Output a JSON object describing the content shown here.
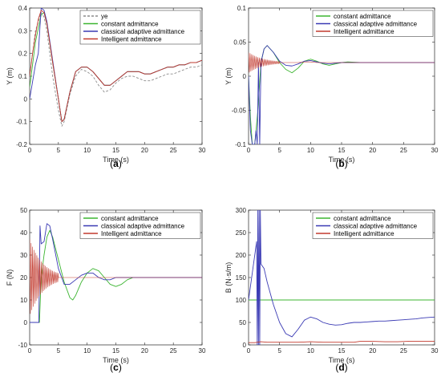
{
  "chart_data": [
    {
      "id": "a",
      "type": "line",
      "panel_label": "(a)",
      "panel_letter": "a",
      "xlabel": "Time (s)",
      "ylabel": "Y (m)",
      "xlim": [
        0,
        30
      ],
      "ylim": [
        -0.2,
        0.4
      ],
      "xticks": [
        0,
        5,
        10,
        15,
        20,
        25,
        30
      ],
      "yticks": [
        -0.2,
        -0.1,
        0,
        0.1,
        0.2,
        0.3,
        0.4
      ],
      "legend_position": "top-right",
      "series": [
        {
          "name": "ye",
          "color": "#8c8c8c",
          "dash": "3,2",
          "x": [
            0,
            1,
            2,
            2.5,
            3,
            4,
            5,
            5.6,
            6,
            7,
            8,
            9,
            10,
            11,
            12,
            13,
            14,
            15,
            16,
            17,
            18,
            19,
            20,
            21,
            22,
            23,
            24,
            25,
            26,
            27,
            28,
            29,
            30
          ],
          "y": [
            0.1,
            0.3,
            0.38,
            0.36,
            0.3,
            0.1,
            -0.05,
            -0.12,
            -0.1,
            0.02,
            0.1,
            0.13,
            0.12,
            0.1,
            0.06,
            0.03,
            0.04,
            0.07,
            0.09,
            0.1,
            0.1,
            0.09,
            0.08,
            0.08,
            0.09,
            0.1,
            0.11,
            0.11,
            0.12,
            0.13,
            0.14,
            0.14,
            0.15
          ]
        },
        {
          "name": "constant admittance",
          "color": "#3cb531",
          "dash": "",
          "x": [
            0,
            1,
            2,
            2.5,
            3,
            4,
            5,
            5.6,
            6,
            7,
            8,
            9,
            10,
            11,
            12,
            13,
            14,
            15,
            16,
            17,
            18,
            19,
            20,
            21,
            22,
            23,
            24,
            25,
            26,
            27,
            28,
            29,
            30
          ],
          "y": [
            0.05,
            0.25,
            0.37,
            0.38,
            0.33,
            0.16,
            0.0,
            -0.1,
            -0.09,
            0.03,
            0.12,
            0.14,
            0.14,
            0.12,
            0.09,
            0.06,
            0.06,
            0.08,
            0.1,
            0.12,
            0.12,
            0.12,
            0.11,
            0.11,
            0.12,
            0.13,
            0.14,
            0.14,
            0.15,
            0.15,
            0.16,
            0.16,
            0.17
          ]
        },
        {
          "name": "classical adaptive admittance",
          "color": "#3a3ab4",
          "dash": "",
          "x": [
            0,
            1,
            1.5,
            2,
            2.5,
            3,
            4,
            5,
            5.6,
            6,
            7,
            8,
            9,
            10,
            11,
            12,
            13,
            14,
            15,
            16,
            17,
            18,
            19,
            20,
            21,
            22,
            23,
            24,
            25,
            26,
            27,
            28,
            29,
            30
          ],
          "y": [
            0.0,
            0.15,
            0.2,
            0.4,
            0.39,
            0.34,
            0.17,
            0.0,
            -0.1,
            -0.09,
            0.03,
            0.12,
            0.14,
            0.14,
            0.12,
            0.09,
            0.06,
            0.06,
            0.08,
            0.1,
            0.12,
            0.12,
            0.12,
            0.11,
            0.11,
            0.12,
            0.13,
            0.14,
            0.14,
            0.15,
            0.15,
            0.16,
            0.16,
            0.17
          ]
        },
        {
          "name": "Intelligent admittance",
          "color": "#c23a2e",
          "dash": "",
          "x": [
            0,
            0.5,
            1,
            1.5,
            2,
            2.5,
            3,
            4,
            5,
            5.6,
            6,
            7,
            8,
            9,
            10,
            11,
            12,
            13,
            14,
            15,
            16,
            17,
            18,
            19,
            20,
            21,
            22,
            23,
            24,
            25,
            26,
            27,
            28,
            29,
            30
          ],
          "y": [
            0.1,
            0.2,
            0.28,
            0.35,
            0.39,
            0.38,
            0.33,
            0.16,
            0.0,
            -0.1,
            -0.09,
            0.03,
            0.12,
            0.14,
            0.14,
            0.12,
            0.09,
            0.06,
            0.06,
            0.08,
            0.1,
            0.12,
            0.12,
            0.12,
            0.11,
            0.11,
            0.12,
            0.13,
            0.14,
            0.14,
            0.15,
            0.15,
            0.16,
            0.16,
            0.17
          ]
        }
      ]
    },
    {
      "id": "b",
      "type": "line",
      "panel_label": "(b)",
      "panel_letter": "b",
      "xlabel": "Time (s)",
      "ylabel": "Y (m)",
      "xlim": [
        0,
        30
      ],
      "ylim": [
        -0.1,
        0.1
      ],
      "xticks": [
        0,
        5,
        10,
        15,
        20,
        25,
        30
      ],
      "yticks": [
        -0.1,
        -0.05,
        0,
        0.05,
        0.1
      ],
      "legend_position": "top-right",
      "series": [
        {
          "name": "constant admittance",
          "color": "#3cb531",
          "dash": "",
          "x": [
            0,
            0.3,
            0.6,
            1,
            1.5,
            2,
            2.5,
            3,
            4,
            5,
            6,
            7,
            8,
            9,
            10,
            11,
            12,
            13,
            14,
            15,
            16,
            18,
            20,
            22,
            24,
            26,
            28,
            30
          ],
          "y": [
            0.0,
            -0.06,
            -0.1,
            -0.1,
            -0.05,
            0.02,
            0.04,
            0.045,
            0.035,
            0.02,
            0.01,
            0.005,
            0.012,
            0.022,
            0.025,
            0.022,
            0.018,
            0.016,
            0.018,
            0.02,
            0.021,
            0.02,
            0.02,
            0.02,
            0.02,
            0.02,
            0.02,
            0.02
          ]
        },
        {
          "name": "classical adaptive admittance",
          "color": "#3a3ab4",
          "dash": "",
          "x": [
            0,
            0.3,
            0.6,
            1,
            1.2,
            1.4,
            1.6,
            1.8,
            2,
            2.5,
            3,
            4,
            5,
            6,
            7,
            8,
            9,
            10,
            11,
            12,
            13,
            14,
            15,
            16,
            18,
            20,
            22,
            24,
            26,
            28,
            30
          ],
          "y": [
            0.0,
            -0.08,
            -0.1,
            -0.1,
            -0.08,
            -0.1,
            0.02,
            -0.1,
            0.02,
            0.04,
            0.045,
            0.035,
            0.022,
            0.016,
            0.015,
            0.018,
            0.022,
            0.023,
            0.021,
            0.019,
            0.018,
            0.019,
            0.02,
            0.02,
            0.02,
            0.02,
            0.02,
            0.02,
            0.02,
            0.02,
            0.02
          ]
        },
        {
          "name": "Intelligent admittance",
          "color": "#c23a2e",
          "dash": "",
          "oscillate": {
            "t0": 0,
            "t1": 5,
            "amp0": 0.015,
            "period": 0.25,
            "center": 0.02
          },
          "x": [
            5,
            6,
            7,
            8,
            9,
            10,
            11,
            12,
            14,
            16,
            18,
            20,
            22,
            24,
            26,
            28,
            30
          ],
          "y": [
            0.02,
            0.02,
            0.02,
            0.02,
            0.021,
            0.021,
            0.02,
            0.02,
            0.02,
            0.02,
            0.02,
            0.02,
            0.02,
            0.02,
            0.02,
            0.02,
            0.02
          ]
        }
      ]
    },
    {
      "id": "c",
      "type": "line",
      "panel_label": "(c)",
      "panel_letter": "c",
      "xlabel": "Time (s)",
      "ylabel": "F (N)",
      "xlim": [
        0,
        30
      ],
      "ylim": [
        -10,
        50
      ],
      "xticks": [
        0,
        5,
        10,
        15,
        20,
        25,
        30
      ],
      "yticks": [
        -10,
        0,
        10,
        20,
        30,
        40,
        50
      ],
      "legend_position": "top-right",
      "series": [
        {
          "name": "constant admittance",
          "color": "#3cb531",
          "dash": "",
          "x": [
            0,
            1,
            1.7,
            2,
            2.5,
            3,
            3.5,
            4,
            5,
            6,
            7,
            7.5,
            8,
            9,
            10,
            11,
            12,
            13,
            14,
            15,
            16,
            17,
            18,
            19,
            20,
            22,
            24,
            26,
            28,
            30
          ],
          "y": [
            0,
            0,
            0,
            20,
            30,
            38,
            41,
            38,
            28,
            18,
            11,
            10,
            12,
            18,
            22,
            24,
            23,
            20,
            17,
            16,
            17,
            19,
            20,
            20,
            20,
            20,
            20,
            20,
            20,
            20
          ]
        },
        {
          "name": "classical adaptive admittance",
          "color": "#3a3ab4",
          "dash": "",
          "x": [
            0,
            1,
            1.6,
            1.8,
            2,
            2.5,
            3,
            3.5,
            4,
            5,
            6,
            7,
            8,
            9,
            10,
            11,
            12,
            13,
            14,
            15,
            16,
            17,
            18,
            19,
            20,
            22,
            24,
            26,
            28,
            30
          ],
          "y": [
            0,
            0,
            0,
            43,
            35,
            36,
            44,
            43,
            37,
            24,
            17,
            17,
            19,
            21,
            22,
            22,
            20,
            19,
            19,
            20,
            20,
            20,
            20,
            20,
            20,
            20,
            20,
            20,
            20,
            20
          ]
        },
        {
          "name": "Intelligent admittance",
          "color": "#c23a2e",
          "dash": "",
          "oscillate": {
            "t0": 0,
            "t1": 5,
            "amp0": 17,
            "period": 0.25,
            "center": 20
          },
          "x": [
            5,
            6,
            8,
            10,
            12,
            14,
            16,
            18,
            20,
            22,
            24,
            26,
            28,
            30
          ],
          "y": [
            20,
            20,
            20,
            20,
            20,
            20,
            20,
            20,
            20,
            20,
            20,
            20,
            20,
            20
          ]
        }
      ]
    },
    {
      "id": "d",
      "type": "line",
      "panel_label": "(d)",
      "panel_letter": "d",
      "xlabel": "Time (s)",
      "ylabel": "B (N·s/m)",
      "xlim": [
        0,
        30
      ],
      "ylim": [
        0,
        300
      ],
      "xticks": [
        0,
        5,
        10,
        15,
        20,
        25,
        30
      ],
      "yticks": [
        0,
        50,
        100,
        150,
        200,
        250,
        300
      ],
      "legend_position": "top-right",
      "series": [
        {
          "name": "constant admittance",
          "color": "#3cb531",
          "dash": "",
          "x": [
            0,
            30
          ],
          "y": [
            100,
            100
          ]
        },
        {
          "name": "classical adaptive admittance",
          "color": "#3a3ab4",
          "dash": "",
          "x": [
            0,
            0.5,
            1,
            1.3,
            1.4,
            1.5,
            1.6,
            1.7,
            1.8,
            1.9,
            2,
            2.5,
            3,
            4,
            5,
            6,
            7,
            8,
            9,
            10,
            11,
            12,
            13,
            14,
            15,
            16,
            17,
            18,
            19,
            20,
            21,
            22,
            23,
            24,
            25,
            26,
            27,
            28,
            29,
            30
          ],
          "y": [
            100,
            150,
            200,
            230,
            0,
            300,
            0,
            300,
            0,
            300,
            180,
            170,
            140,
            90,
            50,
            25,
            18,
            35,
            55,
            62,
            58,
            50,
            46,
            44,
            45,
            48,
            50,
            50,
            51,
            52,
            53,
            53,
            54,
            55,
            56,
            57,
            58,
            60,
            61,
            62
          ]
        },
        {
          "name": "Intelligent admittance",
          "color": "#c23a2e",
          "dash": "",
          "x": [
            0,
            1,
            2,
            3,
            5,
            8,
            10,
            12,
            15,
            17,
            18,
            20,
            22,
            24,
            26,
            28,
            30
          ],
          "y": [
            5,
            5,
            7,
            6,
            6,
            6,
            7,
            6,
            6,
            6,
            8,
            8,
            7,
            7,
            8,
            8,
            8
          ]
        }
      ]
    }
  ]
}
